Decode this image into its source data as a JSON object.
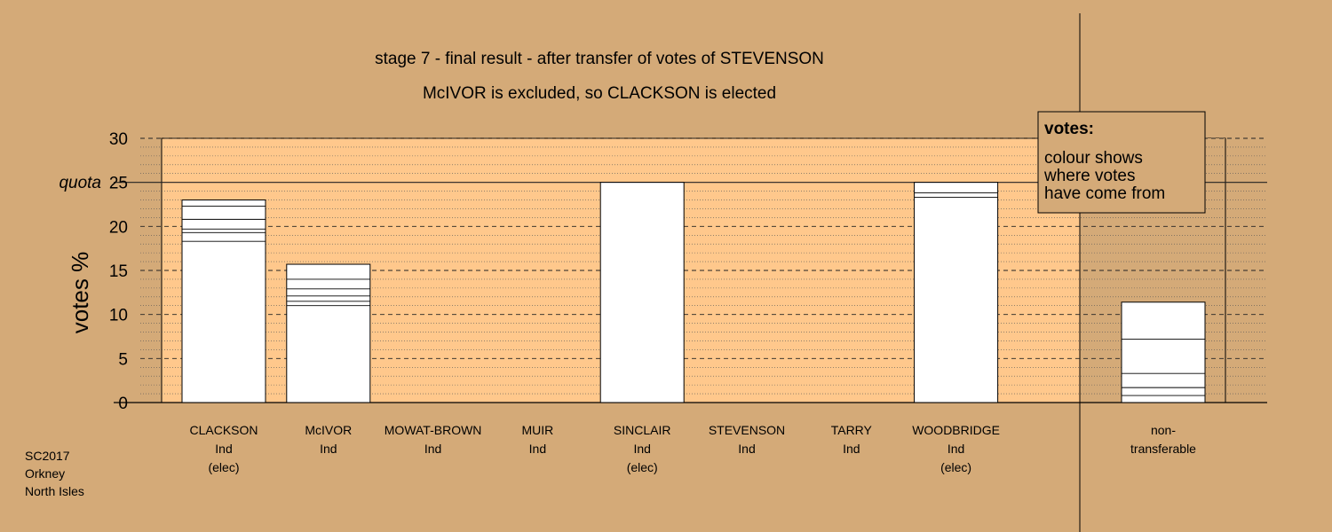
{
  "chart_data": {
    "type": "bar",
    "title": "stage 7 - final result - after transfer of votes of STEVENSON",
    "subtitle": "McIVOR is excluded, so CLACKSON is elected",
    "ylabel": "votes %",
    "ylim": [
      0,
      30
    ],
    "yticks": [
      "0",
      "5",
      "10",
      "15",
      "20",
      "25",
      "30"
    ],
    "quota": {
      "label": "quota",
      "value": 25
    },
    "categories": [
      {
        "name": "CLACKSON",
        "party": "Ind",
        "status": "(elec)"
      },
      {
        "name": "McIVOR",
        "party": "Ind",
        "status": ""
      },
      {
        "name": "MOWAT-BROWN",
        "party": "Ind",
        "status": ""
      },
      {
        "name": "MUIR",
        "party": "Ind",
        "status": ""
      },
      {
        "name": "SINCLAIR",
        "party": "Ind",
        "status": "(elec)"
      },
      {
        "name": "STEVENSON",
        "party": "Ind",
        "status": ""
      },
      {
        "name": "TARRY",
        "party": "Ind",
        "status": ""
      },
      {
        "name": "WOODBRIDGE",
        "party": "Ind",
        "status": "(elec)"
      }
    ],
    "values": [
      23.0,
      15.7,
      0,
      0,
      25.0,
      0,
      0,
      25.0
    ],
    "segments": [
      [
        18.3,
        1.0,
        0.4,
        1.1,
        1.5,
        0.7
      ],
      [
        11.0,
        0.5,
        0.6,
        0.8,
        1.1,
        1.7
      ],
      [],
      [],
      [
        25.0
      ],
      [],
      [],
      [
        23.3,
        0.5,
        1.2
      ]
    ],
    "nontransferable": {
      "label_line1": "non-",
      "label_line2": "transferable",
      "value": 11.4,
      "segments": [
        0.8,
        0.9,
        1.6,
        3.9,
        4.2
      ]
    },
    "grid": true,
    "legend": {
      "position": "top-right",
      "heading": "votes:",
      "lines": [
        "colour shows",
        "where votes",
        "have come from"
      ]
    },
    "colors": {
      "background": "#d4aa78",
      "plot": "#ffc88c",
      "bar": "#ffffff"
    }
  },
  "source": {
    "lines": [
      "SC2017",
      "Orkney",
      "North Isles"
    ]
  }
}
